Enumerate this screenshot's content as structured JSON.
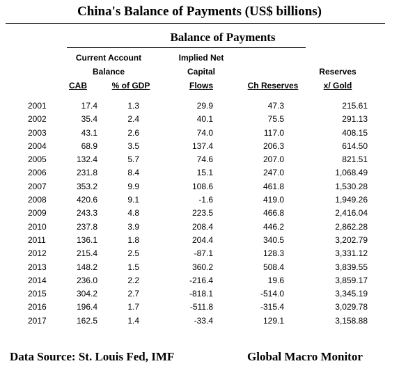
{
  "title": "China's Balance of Payments (US$ billions)",
  "subtitle": "Balance of Payments",
  "headers": {
    "current_account_line1": "Current Account",
    "current_account_line2": "Balance",
    "cab": "CAB",
    "pct_gdp": "% of GDP",
    "implied_line1": "Implied Net",
    "implied_line2": "Capital",
    "implied_line3": "Flows",
    "ch_reserves": "Ch Reserves",
    "reserves_line1": "Reserves",
    "reserves_line2": "x/ Gold"
  },
  "rows": [
    {
      "year": "2001",
      "cab": "17.4",
      "pct_gdp": "1.3",
      "capital_flows": "29.9",
      "ch_reserves": "47.3",
      "reserves": "215.61"
    },
    {
      "year": "2002",
      "cab": "35.4",
      "pct_gdp": "2.4",
      "capital_flows": "40.1",
      "ch_reserves": "75.5",
      "reserves": "291.13"
    },
    {
      "year": "2003",
      "cab": "43.1",
      "pct_gdp": "2.6",
      "capital_flows": "74.0",
      "ch_reserves": "117.0",
      "reserves": "408.15"
    },
    {
      "year": "2004",
      "cab": "68.9",
      "pct_gdp": "3.5",
      "capital_flows": "137.4",
      "ch_reserves": "206.3",
      "reserves": "614.50"
    },
    {
      "year": "2005",
      "cab": "132.4",
      "pct_gdp": "5.7",
      "capital_flows": "74.6",
      "ch_reserves": "207.0",
      "reserves": "821.51"
    },
    {
      "year": "2006",
      "cab": "231.8",
      "pct_gdp": "8.4",
      "capital_flows": "15.1",
      "ch_reserves": "247.0",
      "reserves": "1,068.49"
    },
    {
      "year": "2007",
      "cab": "353.2",
      "pct_gdp": "9.9",
      "capital_flows": "108.6",
      "ch_reserves": "461.8",
      "reserves": "1,530.28"
    },
    {
      "year": "2008",
      "cab": "420.6",
      "pct_gdp": "9.1",
      "capital_flows": "-1.6",
      "ch_reserves": "419.0",
      "reserves": "1,949.26"
    },
    {
      "year": "2009",
      "cab": "243.3",
      "pct_gdp": "4.8",
      "capital_flows": "223.5",
      "ch_reserves": "466.8",
      "reserves": "2,416.04"
    },
    {
      "year": "2010",
      "cab": "237.8",
      "pct_gdp": "3.9",
      "capital_flows": "208.4",
      "ch_reserves": "446.2",
      "reserves": "2,862.28"
    },
    {
      "year": "2011",
      "cab": "136.1",
      "pct_gdp": "1.8",
      "capital_flows": "204.4",
      "ch_reserves": "340.5",
      "reserves": "3,202.79"
    },
    {
      "year": "2012",
      "cab": "215.4",
      "pct_gdp": "2.5",
      "capital_flows": "-87.1",
      "ch_reserves": "128.3",
      "reserves": "3,331.12"
    },
    {
      "year": "2013",
      "cab": "148.2",
      "pct_gdp": "1.5",
      "capital_flows": "360.2",
      "ch_reserves": "508.4",
      "reserves": "3,839.55"
    },
    {
      "year": "2014",
      "cab": "236.0",
      "pct_gdp": "2.2",
      "capital_flows": "-216.4",
      "ch_reserves": "19.6",
      "reserves": "3,859.17"
    },
    {
      "year": "2015",
      "cab": "304.2",
      "pct_gdp": "2.7",
      "capital_flows": "-818.1",
      "ch_reserves": "-514.0",
      "reserves": "3,345.19"
    },
    {
      "year": "2016",
      "cab": "196.4",
      "pct_gdp": "1.7",
      "capital_flows": "-511.8",
      "ch_reserves": "-315.4",
      "reserves": "3,029.78"
    },
    {
      "year": "2017",
      "cab": "162.5",
      "pct_gdp": "1.4",
      "capital_flows": "-33.4",
      "ch_reserves": "129.1",
      "reserves": "3,158.88"
    }
  ],
  "footer": {
    "source": "Data Source:  St. Louis Fed, IMF",
    "brand": "Global Macro Monitor"
  }
}
